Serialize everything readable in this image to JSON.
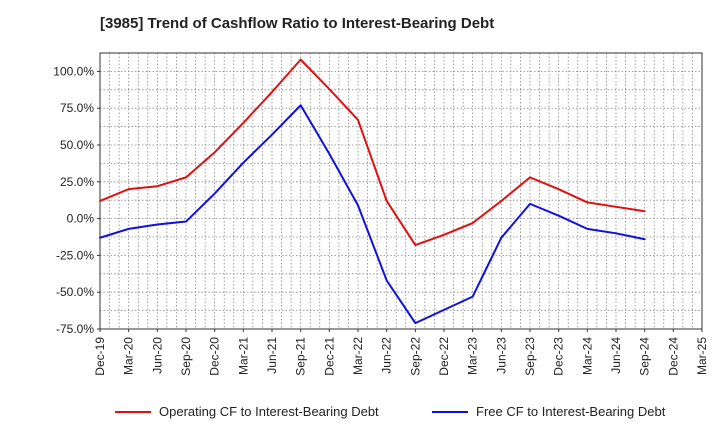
{
  "chart_data": {
    "type": "line",
    "title": "[3985]  Trend of Cashflow Ratio to Interest-Bearing Debt",
    "x": [
      "Dec-19",
      "Mar-20",
      "Jun-20",
      "Sep-20",
      "Dec-20",
      "Mar-21",
      "Jun-21",
      "Sep-21",
      "Dec-21",
      "Mar-22",
      "Jun-22",
      "Sep-22",
      "Dec-22",
      "Mar-23",
      "Jun-23",
      "Sep-23",
      "Dec-23",
      "Mar-24",
      "Jun-24",
      "Sep-24",
      "Dec-24",
      "Mar-25"
    ],
    "ylim": [
      -75,
      112.5
    ],
    "yticks": [
      "100.0%",
      "75.0%",
      "50.0%",
      "25.0%",
      "0.0%",
      "-25.0%",
      "-50.0%",
      "-75.0%"
    ],
    "ytick_values": [
      100,
      75,
      50,
      25,
      0,
      -25,
      -50,
      -75
    ],
    "grid": true,
    "legend_position": "bottom",
    "series": [
      {
        "name": "Operating CF to Interest-Bearing Debt",
        "color": "#e01010",
        "values": [
          12,
          20,
          22,
          28,
          45,
          65,
          86,
          108,
          88,
          67,
          12,
          -18,
          -11,
          -3,
          12,
          28,
          20,
          11,
          8,
          5,
          null,
          null
        ]
      },
      {
        "name": "Free CF to Interest-Bearing Debt",
        "color": "#1010e0",
        "values": [
          -13,
          -7,
          -4,
          -2,
          17,
          38,
          57,
          77,
          44,
          9,
          -42,
          -71,
          -62,
          -53,
          -13,
          10,
          2,
          -7,
          -10,
          -14,
          null,
          null
        ]
      }
    ]
  }
}
